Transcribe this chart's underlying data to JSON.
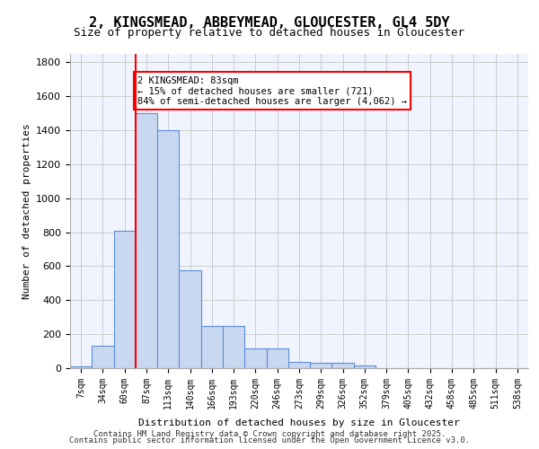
{
  "title_line1": "2, KINGSMEAD, ABBEYMEAD, GLOUCESTER, GL4 5DY",
  "title_line2": "Size of property relative to detached houses in Gloucester",
  "xlabel": "Distribution of detached houses by size in Gloucester",
  "ylabel": "Number of detached properties",
  "categories": [
    "7sqm",
    "34sqm",
    "60sqm",
    "87sqm",
    "113sqm",
    "140sqm",
    "166sqm",
    "193sqm",
    "220sqm",
    "246sqm",
    "273sqm",
    "299sqm",
    "326sqm",
    "352sqm",
    "379sqm",
    "405sqm",
    "432sqm",
    "458sqm",
    "485sqm",
    "511sqm",
    "538sqm"
  ],
  "values": [
    10,
    130,
    810,
    1500,
    1400,
    575,
    250,
    250,
    115,
    115,
    35,
    30,
    30,
    15,
    0,
    0,
    0,
    0,
    0,
    0,
    0
  ],
  "bar_color": "#c8d8f0",
  "bar_edge_color": "#5b8dd9",
  "grid_color": "#cccccc",
  "background_color": "#f0f4ff",
  "vline_x": 2,
  "vline_color": "red",
  "annotation_text": "2 KINGSMEAD: 83sqm\n← 15% of detached houses are smaller (721)\n84% of semi-detached houses are larger (4,062) →",
  "annotation_box_color": "red",
  "ylim": [
    0,
    1850
  ],
  "yticks": [
    0,
    200,
    400,
    600,
    800,
    1000,
    1200,
    1400,
    1600,
    1800
  ],
  "footer_line1": "Contains HM Land Registry data © Crown copyright and database right 2025.",
  "footer_line2": "Contains public sector information licensed under the Open Government Licence v3.0."
}
